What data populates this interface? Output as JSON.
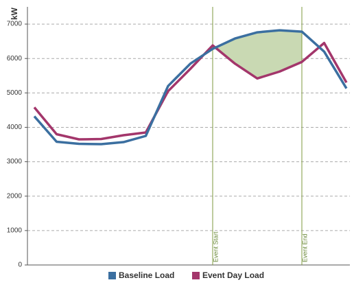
{
  "chart_data": {
    "type": "line",
    "y_label": "kW",
    "categories": [
      null,
      null,
      null,
      null,
      null,
      null,
      null,
      null,
      null,
      null,
      null,
      null,
      null,
      null,
      null
    ],
    "series": [
      {
        "name": "Baseline Load",
        "color": "#3b6fa0",
        "values": [
          4320,
          3580,
          3520,
          3510,
          3570,
          3750,
          5200,
          5850,
          6280,
          6580,
          6760,
          6820,
          6780,
          6200,
          5130
        ]
      },
      {
        "name": "Event Day Load",
        "color": "#a3366b",
        "values": [
          4580,
          3800,
          3650,
          3660,
          3770,
          3850,
          5050,
          5700,
          6380,
          5850,
          5420,
          5620,
          5900,
          6450,
          5300
        ]
      }
    ],
    "annotations": [
      {
        "text": "Event Start",
        "x": 8
      },
      {
        "text": "Event End",
        "x": 12
      }
    ],
    "ylim": [
      0,
      7500
    ],
    "yticks": [
      0,
      1000,
      2000,
      3000,
      4000,
      5000,
      6000,
      7000
    ],
    "grid": true,
    "legend": "bottom"
  }
}
